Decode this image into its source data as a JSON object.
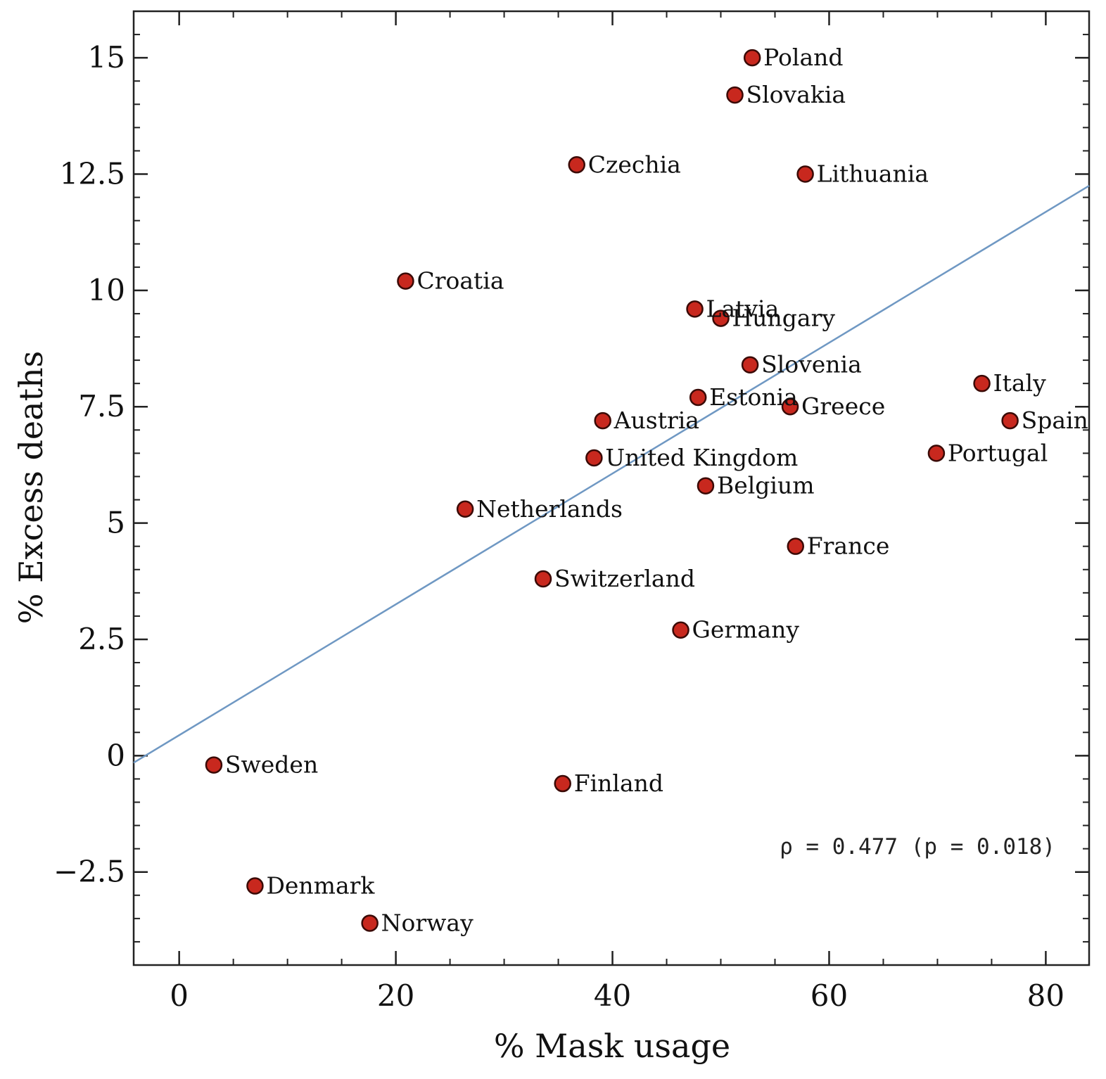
{
  "chart_data": {
    "type": "scatter",
    "xlabel": "% Mask usage",
    "ylabel": "% Excess deaths",
    "xlim": [
      -4.2,
      84
    ],
    "ylim": [
      -4.5,
      16
    ],
    "x_ticks": [
      0,
      20,
      40,
      60,
      80
    ],
    "x_tick_labels": [
      "0",
      "20",
      "40",
      "60",
      "80"
    ],
    "y_ticks": [
      -2.5,
      0,
      2.5,
      5,
      7.5,
      10,
      12.5,
      15
    ],
    "y_tick_labels": [
      "−2.5",
      "0",
      "2.5",
      "5",
      "7.5",
      "10",
      "12.5",
      "15"
    ],
    "grid": false,
    "marker_color": "#c8281e",
    "line_color": "#6f98c3",
    "fit_line": {
      "x": [
        -4.2,
        84
      ],
      "y": [
        -0.15,
        12.25
      ]
    },
    "annotation": "ρ = 0.477 (p = 0.018)",
    "points": [
      {
        "label": "Poland",
        "x": 52.9,
        "y": 15.0
      },
      {
        "label": "Slovakia",
        "x": 51.3,
        "y": 14.2
      },
      {
        "label": "Czechia",
        "x": 36.7,
        "y": 12.7
      },
      {
        "label": "Lithuania",
        "x": 57.8,
        "y": 12.5
      },
      {
        "label": "Croatia",
        "x": 20.9,
        "y": 10.2
      },
      {
        "label": "Latvia",
        "x": 47.6,
        "y": 9.6
      },
      {
        "label": "Hungary",
        "x": 50.0,
        "y": 9.4
      },
      {
        "label": "Slovenia",
        "x": 52.7,
        "y": 8.4
      },
      {
        "label": "Italy",
        "x": 74.1,
        "y": 8.0
      },
      {
        "label": "Estonia",
        "x": 47.9,
        "y": 7.7
      },
      {
        "label": "Greece",
        "x": 56.4,
        "y": 7.5
      },
      {
        "label": "Austria",
        "x": 39.1,
        "y": 7.2
      },
      {
        "label": "Spain",
        "x": 76.7,
        "y": 7.2
      },
      {
        "label": "Portugal",
        "x": 69.9,
        "y": 6.5
      },
      {
        "label": "United Kingdom",
        "x": 38.3,
        "y": 6.4
      },
      {
        "label": "Belgium",
        "x": 48.6,
        "y": 5.8
      },
      {
        "label": "Netherlands",
        "x": 26.4,
        "y": 5.3
      },
      {
        "label": "France",
        "x": 56.9,
        "y": 4.5
      },
      {
        "label": "Switzerland",
        "x": 33.6,
        "y": 3.8
      },
      {
        "label": "Germany",
        "x": 46.3,
        "y": 2.7
      },
      {
        "label": "Sweden",
        "x": 3.2,
        "y": -0.2
      },
      {
        "label": "Finland",
        "x": 35.4,
        "y": -0.6
      },
      {
        "label": "Denmark",
        "x": 7.0,
        "y": -2.8
      },
      {
        "label": "Norway",
        "x": 17.6,
        "y": -3.6
      }
    ]
  }
}
